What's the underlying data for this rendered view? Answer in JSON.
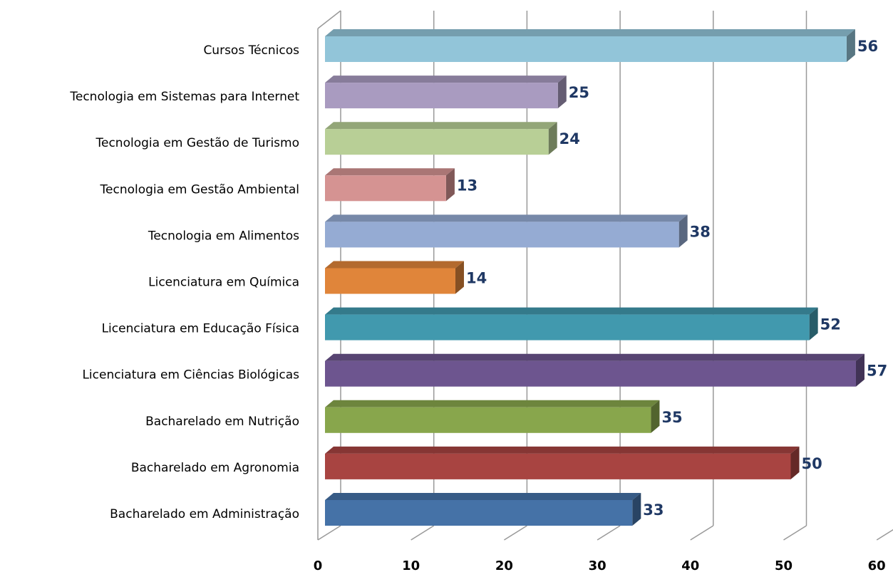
{
  "chart_data": {
    "type": "bar3d_horizontal",
    "categories": [
      "Cursos Técnicos",
      "Tecnologia em Sistemas para Internet",
      "Tecnologia em Gestão de Turismo",
      "Tecnologia em Gestão Ambiental",
      "Tecnologia em Alimentos",
      "Licenciatura em Química",
      "Licenciatura em Educação Física",
      "Licenciatura em Ciências Biológicas",
      "Bacharelado em Nutrição",
      "Bacharelado em Agronomia",
      "Bacharelado em Administração"
    ],
    "values": [
      56,
      25,
      24,
      13,
      38,
      14,
      52,
      57,
      35,
      50,
      33
    ],
    "colors": [
      "#92c5d9",
      "#a99bc0",
      "#b8cf96",
      "#d59392",
      "#95abd3",
      "#e0853a",
      "#4199ae",
      "#6d558f",
      "#88a64c",
      "#a84441",
      "#4572a7"
    ],
    "xlim": [
      0,
      60
    ],
    "xticks": [
      0,
      10,
      20,
      30,
      40,
      50,
      60
    ],
    "grid": true
  }
}
